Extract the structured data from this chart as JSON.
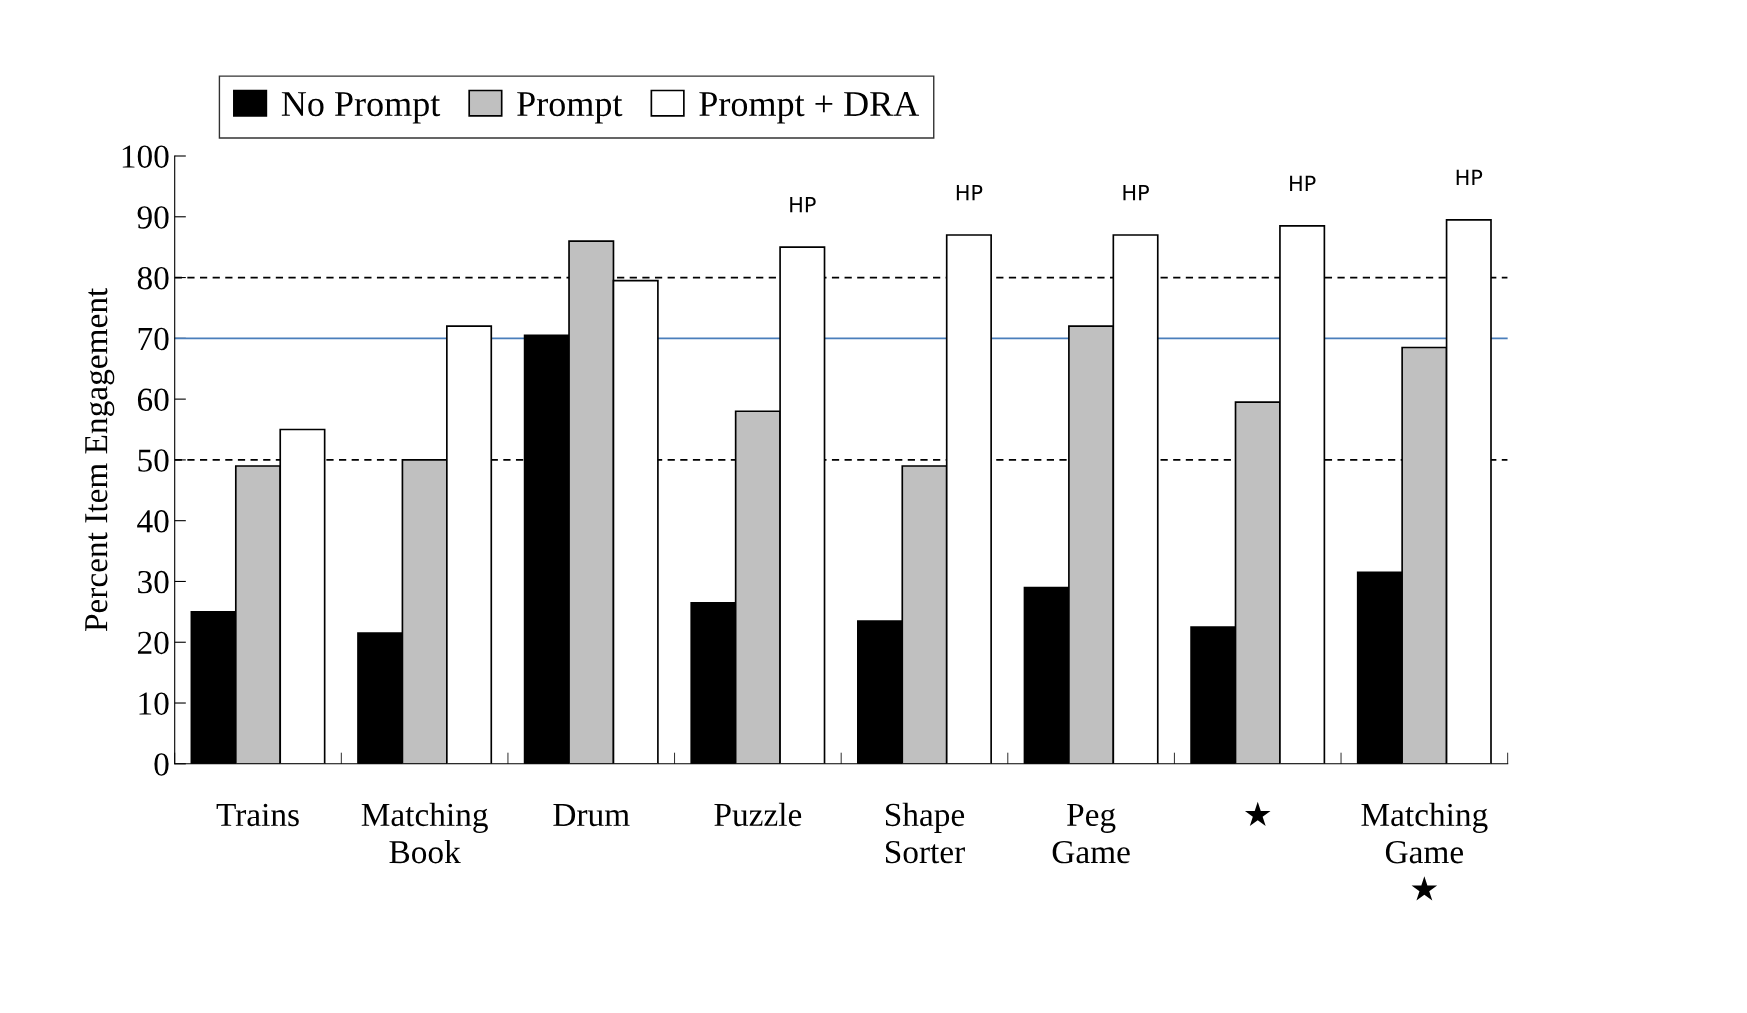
{
  "chart_data": {
    "type": "bar",
    "ylabel": "Percent Item Engagement",
    "categories": [
      "Trains",
      "Matching\nBook",
      "Drum",
      "Puzzle",
      "Shape\nSorter",
      "Peg\nGame",
      "★",
      "Matching\nGame\n★"
    ],
    "series": [
      {
        "name": "No Prompt",
        "color": "#000000",
        "values": [
          25,
          21.5,
          70.5,
          26.5,
          23.5,
          29,
          22.5,
          31.5
        ]
      },
      {
        "name": "Prompt",
        "color": "#c0c0c0",
        "values": [
          49,
          50,
          86,
          58,
          49,
          72,
          59.5,
          68.5
        ]
      },
      {
        "name": "Prompt + DRA",
        "color": "#ffffff",
        "values": [
          55,
          72,
          79.5,
          85,
          87,
          87,
          88.5,
          89.5
        ],
        "value_labels": [
          null,
          null,
          null,
          "HP",
          "HP",
          "HP",
          "HP",
          "HP"
        ]
      }
    ],
    "ylim": [
      0,
      100
    ],
    "yticks": [
      0,
      10,
      20,
      30,
      40,
      50,
      60,
      70,
      80,
      90,
      100
    ],
    "ref_lines": [
      {
        "axis": "y",
        "value": 50,
        "color": "#000000",
        "line_style": "dashed"
      },
      {
        "axis": "y",
        "value": 80,
        "color": "#000000",
        "line_style": "dashed"
      },
      {
        "axis": "y",
        "value": 70,
        "color": "#4a7ebb",
        "line_style": "solid"
      }
    ],
    "legend": "top left",
    "grid": false
  }
}
